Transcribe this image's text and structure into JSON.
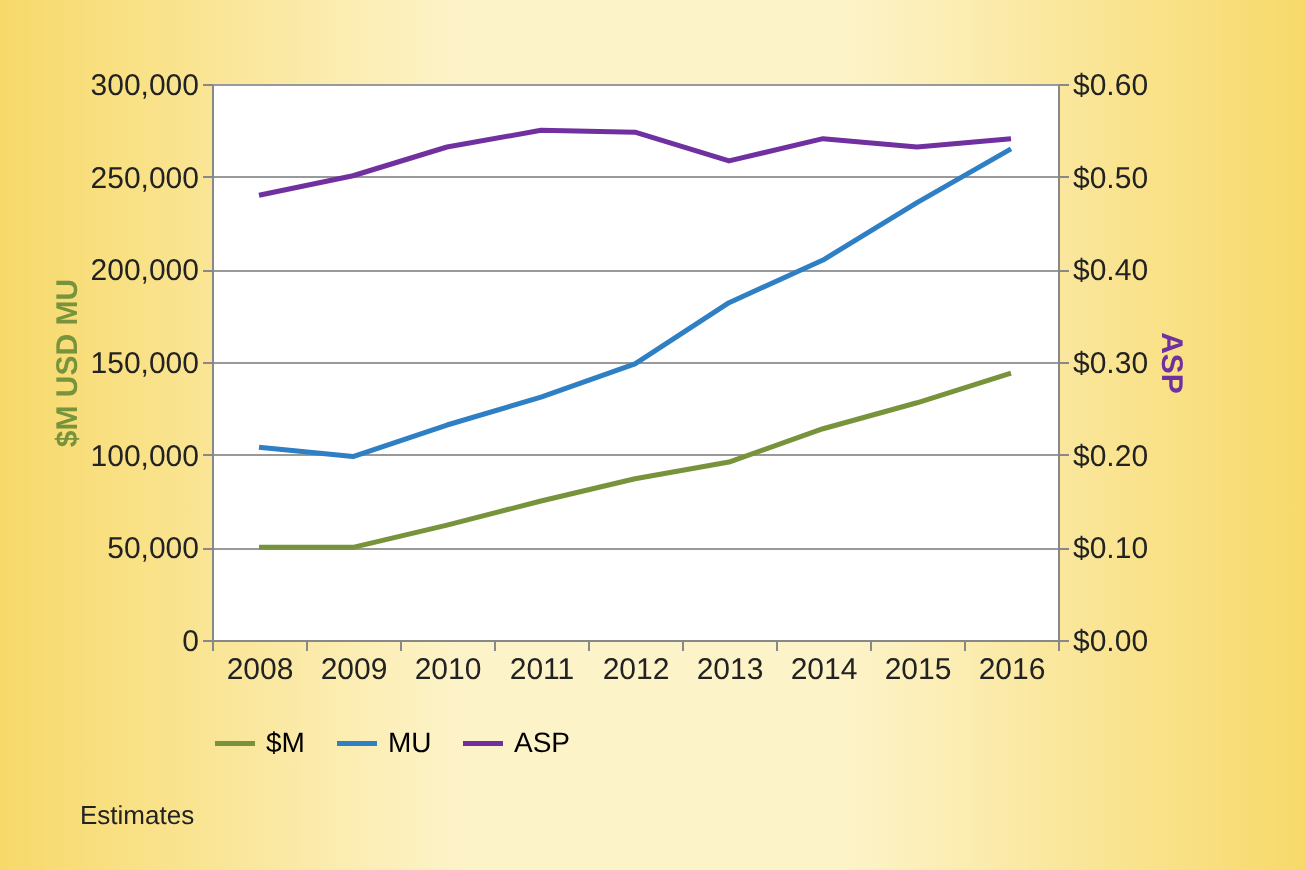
{
  "chart_data": {
    "type": "line",
    "categories": [
      "2008",
      "2009",
      "2010",
      "2011",
      "2012",
      "2013",
      "2014",
      "2015",
      "2016"
    ],
    "series": [
      {
        "name": "$M",
        "color": "#77933c",
        "values": [
          50000,
          50000,
          62000,
          75000,
          87000,
          96000,
          114000,
          128000,
          144000
        ]
      },
      {
        "name": "MU",
        "color": "#2e7fc4",
        "values": [
          104000,
          99000,
          116000,
          131000,
          149000,
          182000,
          205000,
          236000,
          265000
        ]
      },
      {
        "name": "ASP",
        "color": "#7030a0",
        "axis": "y2",
        "values": [
          0.48,
          0.501,
          0.532,
          0.55,
          0.548,
          0.517,
          0.541,
          0.532,
          0.541
        ]
      }
    ],
    "ylabel": "$M USD   MU",
    "y2label": "ASP",
    "ylim": [
      0,
      300000
    ],
    "yticks": [
      0,
      {
        "value": 50000,
        "label": "50,000"
      },
      {
        "value": 100000,
        "label": "100,000"
      },
      {
        "value": 150000,
        "label": "150,000"
      },
      {
        "value": 200000,
        "label": "200,000"
      },
      {
        "value": 250000,
        "label": "250,000"
      },
      {
        "value": 300000,
        "label": "300,000"
      }
    ],
    "y2lim": [
      0,
      0.6
    ],
    "y2ticks": [
      {
        "value": 0,
        "label": "$0.00"
      },
      {
        "value": 0.1,
        "label": "$0.10"
      },
      {
        "value": 0.2,
        "label": "$0.20"
      },
      {
        "value": 0.3,
        "label": "$0.30"
      },
      {
        "value": 0.4,
        "label": "$0.40"
      },
      {
        "value": 0.5,
        "label": "$0.50"
      },
      {
        "value": 0.6,
        "label": "$0.60"
      }
    ],
    "grid": "y",
    "legend": "bottom",
    "marker": "none",
    "line_style": "solid",
    "annotations": [
      "Estimates"
    ]
  }
}
